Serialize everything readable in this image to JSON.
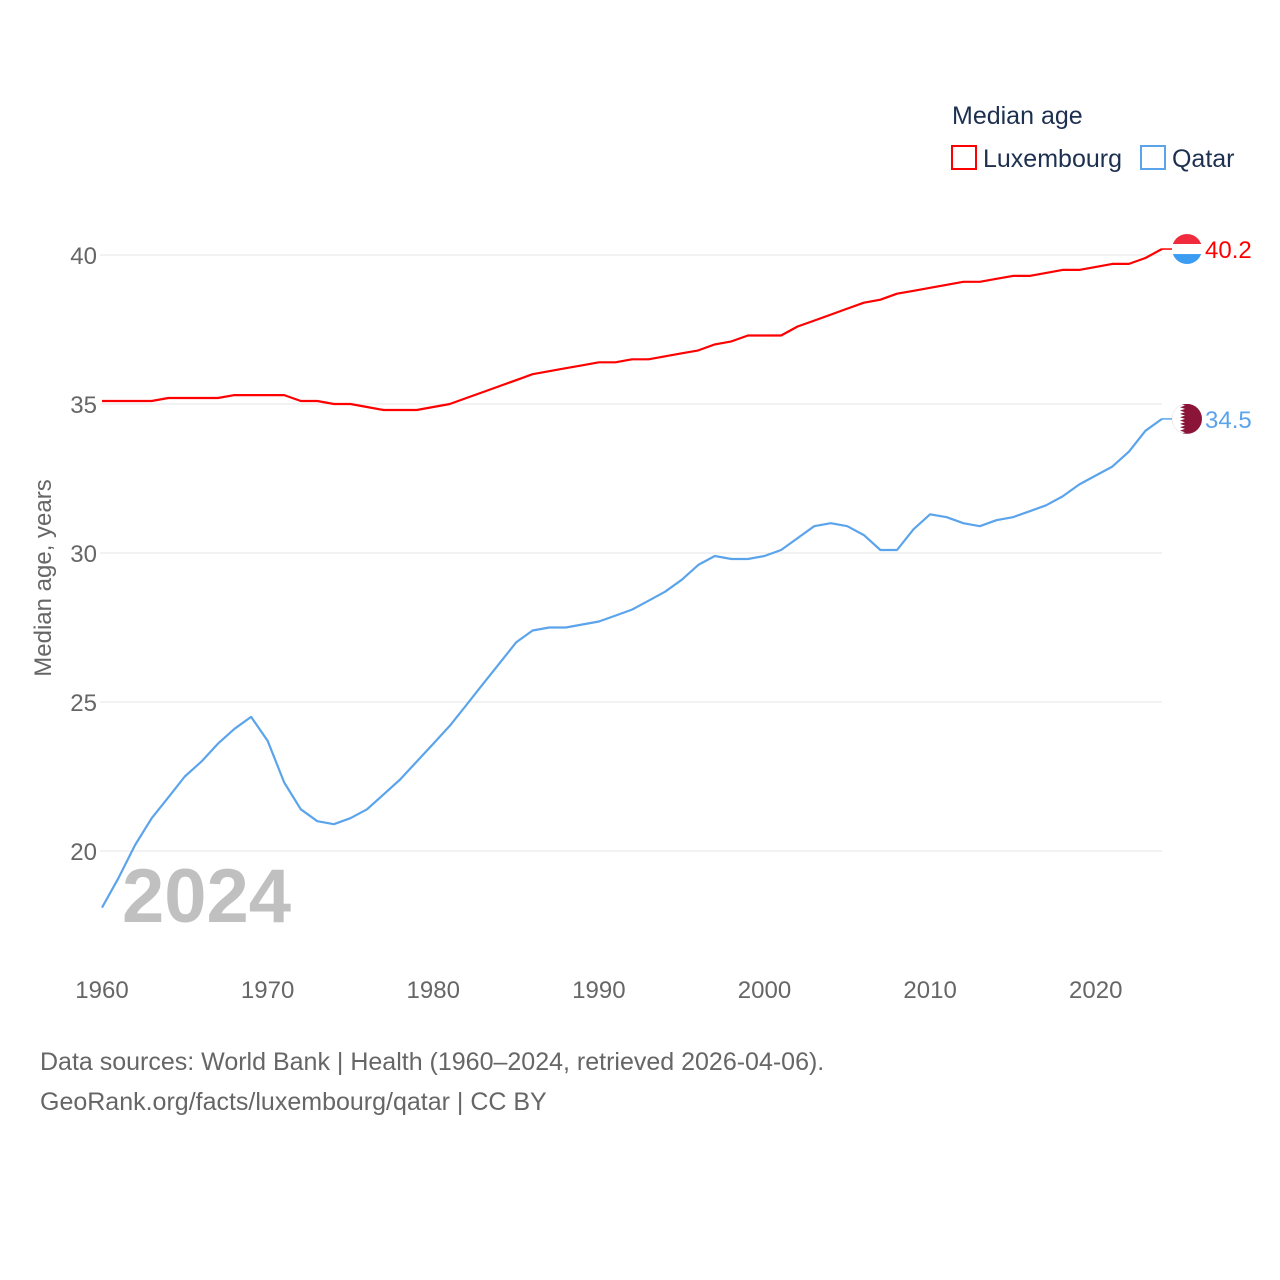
{
  "chart_data": {
    "type": "line",
    "title": "Median age",
    "ylabel": "Median age, years",
    "xlabel": "",
    "xlim": [
      1960,
      2024
    ],
    "ylim": [
      18,
      40.5
    ],
    "yticks": [
      20,
      25,
      30,
      35,
      40
    ],
    "xticks": [
      1960,
      1970,
      1980,
      1990,
      2000,
      2010,
      2020
    ],
    "grid": true,
    "legend_position": "top-right",
    "year_label": "2024",
    "x": [
      1960,
      1961,
      1962,
      1963,
      1964,
      1965,
      1966,
      1967,
      1968,
      1969,
      1970,
      1971,
      1972,
      1973,
      1974,
      1975,
      1976,
      1977,
      1978,
      1979,
      1980,
      1981,
      1982,
      1983,
      1984,
      1985,
      1986,
      1987,
      1988,
      1989,
      1990,
      1991,
      1992,
      1993,
      1994,
      1995,
      1996,
      1997,
      1998,
      1999,
      2000,
      2001,
      2002,
      2003,
      2004,
      2005,
      2006,
      2007,
      2008,
      2009,
      2010,
      2011,
      2012,
      2013,
      2014,
      2015,
      2016,
      2017,
      2018,
      2019,
      2020,
      2021,
      2022,
      2023,
      2024
    ],
    "series": [
      {
        "name": "Luxembourg",
        "color": "#ff0000",
        "end_label": "40.2",
        "values": [
          35.1,
          35.1,
          35.1,
          35.1,
          35.2,
          35.2,
          35.2,
          35.2,
          35.3,
          35.3,
          35.3,
          35.3,
          35.1,
          35.1,
          35.0,
          35.0,
          34.9,
          34.8,
          34.8,
          34.8,
          34.9,
          35.0,
          35.2,
          35.4,
          35.6,
          35.8,
          36.0,
          36.1,
          36.2,
          36.3,
          36.4,
          36.4,
          36.5,
          36.5,
          36.6,
          36.7,
          36.8,
          37.0,
          37.1,
          37.3,
          37.3,
          37.3,
          37.6,
          37.8,
          38.0,
          38.2,
          38.4,
          38.5,
          38.7,
          38.8,
          38.9,
          39.0,
          39.1,
          39.1,
          39.2,
          39.3,
          39.3,
          39.4,
          39.5,
          39.5,
          39.6,
          39.7,
          39.7,
          39.9,
          40.2
        ]
      },
      {
        "name": "Qatar",
        "color": "#5ba4ec",
        "end_label": "34.5",
        "values": [
          18.1,
          19.1,
          20.2,
          21.1,
          21.8,
          22.5,
          23.0,
          23.6,
          24.1,
          24.5,
          23.7,
          22.3,
          21.4,
          21.0,
          20.9,
          21.1,
          21.4,
          21.9,
          22.4,
          23.0,
          23.6,
          24.2,
          24.9,
          25.6,
          26.3,
          27.0,
          27.4,
          27.5,
          27.5,
          27.6,
          27.7,
          27.9,
          28.1,
          28.4,
          28.7,
          29.1,
          29.6,
          29.9,
          29.8,
          29.8,
          29.9,
          30.1,
          30.5,
          30.9,
          31.0,
          30.9,
          30.6,
          30.1,
          30.1,
          30.8,
          31.3,
          31.2,
          31.0,
          30.9,
          31.1,
          31.2,
          31.4,
          31.6,
          31.9,
          32.3,
          32.6,
          32.9,
          33.4,
          34.1,
          34.5
        ]
      }
    ]
  },
  "footer": {
    "line1": "Data sources: World Bank | Health (1960–2024, retrieved 2026-04-06).",
    "line2": "GeoRank.org/facts/luxembourg/qatar | CC BY"
  }
}
